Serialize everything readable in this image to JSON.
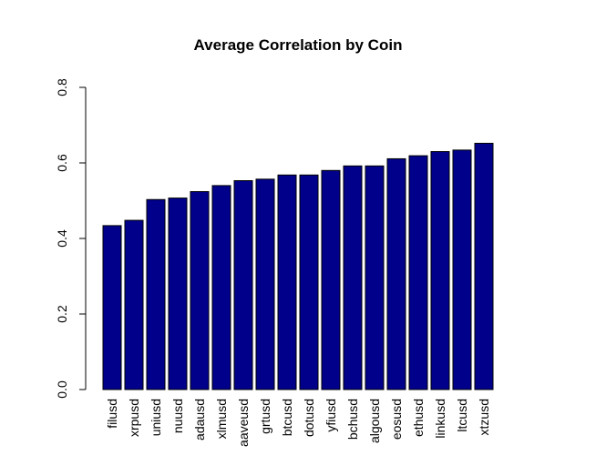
{
  "chart_data": {
    "type": "bar",
    "title": "Average Correlation by Coin",
    "xlabel": "",
    "ylabel": "",
    "categories": [
      "filusd",
      "xrpusd",
      "uniusd",
      "nuusd",
      "adausd",
      "xlmusd",
      "aaveusd",
      "grtusd",
      "btcusd",
      "dotusd",
      "yfiusd",
      "bchusd",
      "algousd",
      "eosusd",
      "ethusd",
      "linkusd",
      "ltcusd",
      "xtzusd"
    ],
    "values": [
      0.434,
      0.448,
      0.503,
      0.507,
      0.524,
      0.54,
      0.553,
      0.557,
      0.568,
      0.568,
      0.58,
      0.592,
      0.592,
      0.611,
      0.619,
      0.63,
      0.634,
      0.652
    ],
    "ylim": [
      0,
      0.8
    ],
    "yticks": [
      "0.0",
      "0.2",
      "0.4",
      "0.6",
      "0.8"
    ],
    "bar_color": "#00008B",
    "grid": false
  }
}
